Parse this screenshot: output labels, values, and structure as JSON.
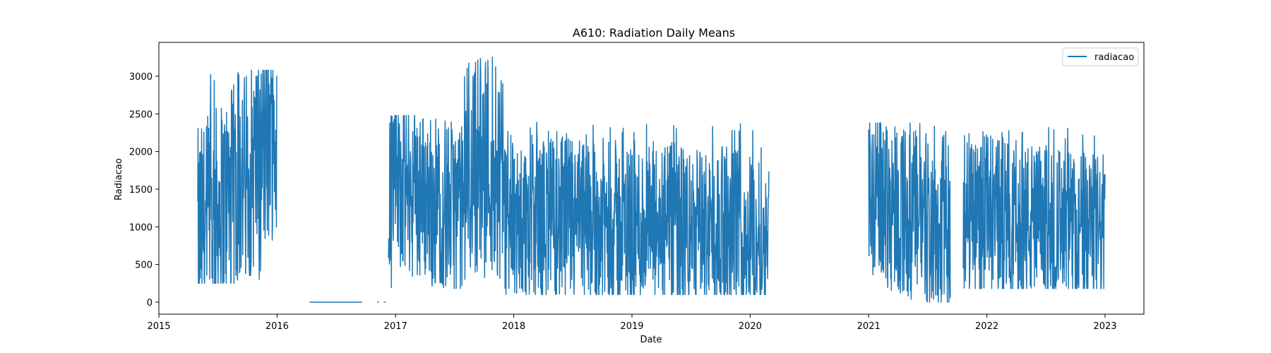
{
  "chart_data": {
    "type": "line",
    "title": "A610: Radiation Daily Means",
    "xlabel": "Date",
    "ylabel": "Radiacao",
    "x_ticks": [
      "2015",
      "2016",
      "2017",
      "2018",
      "2019",
      "2020",
      "2021",
      "2022",
      "2023"
    ],
    "y_ticks": [
      "0",
      "500",
      "1000",
      "1500",
      "2000",
      "2500",
      "3000"
    ],
    "xlim": [
      "2015-01-01",
      "2023-05-01"
    ],
    "ylim": [
      -160,
      3450
    ],
    "grid": false,
    "legend_position": "top-right",
    "color": "#1f77b4",
    "series": [
      {
        "name": "radiacao",
        "segments": [
          {
            "start": "2015-05-01",
            "end": "2015-12-31",
            "min": 250,
            "max": 3080,
            "trend_start": 900,
            "trend_end": 2200
          },
          {
            "start": "2016-04-10",
            "end": "2016-09-20",
            "min": 0,
            "max": 0,
            "trend_start": 0,
            "trend_end": 0
          },
          {
            "start": "2016-11-05",
            "end": "2016-11-10",
            "min": 0,
            "max": 0,
            "trend_start": 0,
            "trend_end": 0
          },
          {
            "start": "2016-11-25",
            "end": "2016-12-01",
            "min": 0,
            "max": 0,
            "trend_start": 0,
            "trend_end": 0
          },
          {
            "start": "2016-12-10",
            "end": "2017-07-31",
            "min": 180,
            "max": 2480,
            "trend_start": 1600,
            "trend_end": 1200
          },
          {
            "start": "2017-08-01",
            "end": "2017-11-30",
            "min": 300,
            "max": 3290,
            "trend_start": 1800,
            "trend_end": 2000
          },
          {
            "start": "2017-12-01",
            "end": "2020-02-28",
            "min": 100,
            "max": 2400,
            "trend_start": 1100,
            "trend_end": 900
          },
          {
            "start": "2021-01-01",
            "end": "2021-09-10",
            "min": 0,
            "max": 2380,
            "trend_start": 1500,
            "trend_end": 900
          },
          {
            "start": "2021-10-20",
            "end": "2023-01-01",
            "min": 180,
            "max": 2330,
            "trend_start": 1200,
            "trend_end": 900
          }
        ]
      }
    ]
  }
}
